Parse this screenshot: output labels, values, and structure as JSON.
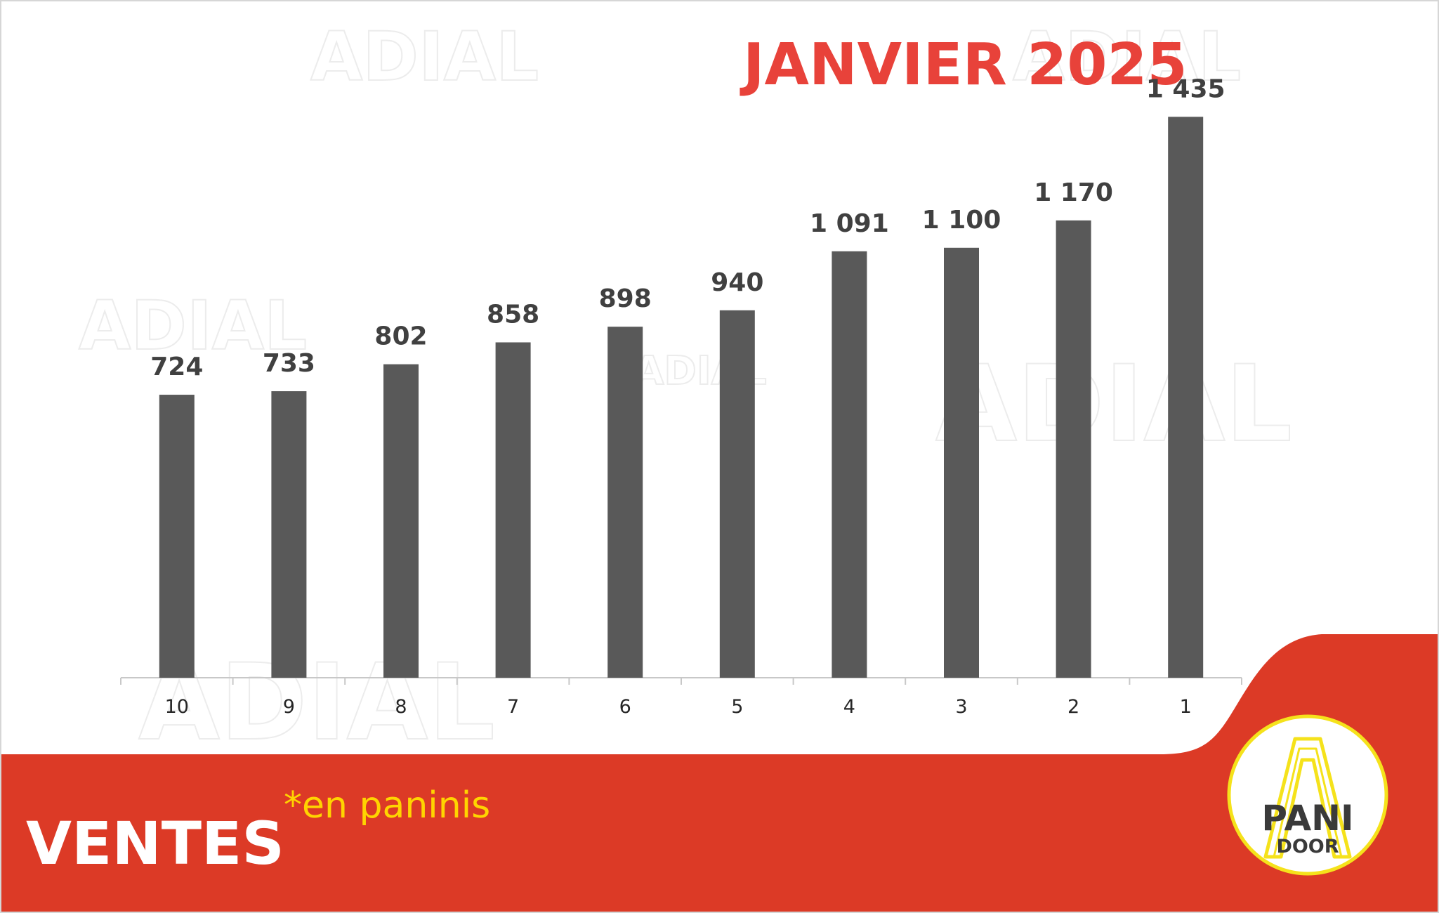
{
  "chart_data": {
    "type": "bar",
    "title": "JANVIER 2025",
    "categories": [
      "10",
      "9",
      "8",
      "7",
      "6",
      "5",
      "4",
      "3",
      "2",
      "1"
    ],
    "values": [
      724,
      733,
      802,
      858,
      898,
      940,
      1091,
      1100,
      1170,
      1435
    ],
    "data_labels": [
      "724",
      "733",
      "802",
      "858",
      "898",
      "940",
      "1 091",
      "1 100",
      "1 170",
      "1 435"
    ],
    "xlabel": "",
    "ylabel": "",
    "ylim": [
      0,
      1450
    ],
    "grid": false,
    "legend": "none",
    "bar_color": "#595959"
  },
  "footer": {
    "label": "VENTES",
    "note": "*en paninis"
  },
  "logo": {
    "line1": "PANI",
    "line2": "DOOR"
  },
  "watermark": "ADIAL",
  "colors": {
    "title": "#e8423a",
    "banner": "#dc3a26",
    "note": "#ffd400",
    "logo_ring": "#f5e21b",
    "bars": "#595959"
  }
}
